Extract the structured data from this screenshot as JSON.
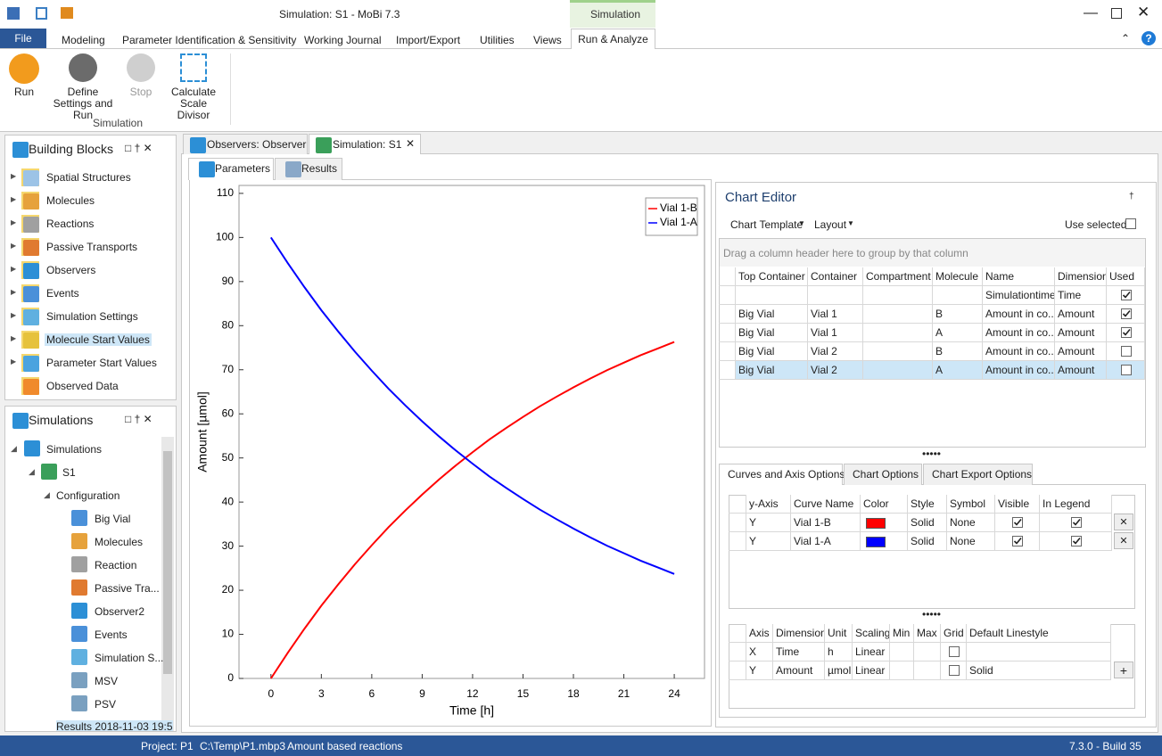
{
  "window": {
    "title": "Simulation: S1 - MoBi 7.3",
    "context_tab": "Simulation"
  },
  "ribbon": {
    "tabs": [
      "File",
      "Modeling",
      "Parameter Identification & Sensitivity",
      "Working Journal",
      "Import/Export",
      "Utilities",
      "Views",
      "Run & Analyze"
    ],
    "buttons": [
      "Run",
      "Define Settings and Run",
      "Stop",
      "Calculate Scale Divisor"
    ],
    "group": "Simulation"
  },
  "building_blocks": {
    "title": "Building Blocks",
    "items": [
      "Spatial Structures",
      "Molecules",
      "Reactions",
      "Passive Transports",
      "Observers",
      "Events",
      "Simulation Settings",
      "Molecule Start Values",
      "Parameter Start Values",
      "Observed Data"
    ]
  },
  "simulations": {
    "title": "Simulations",
    "root": "Simulations",
    "simulation": "S1",
    "folder": "Configuration",
    "items": [
      "Big Vial",
      "Molecules",
      "Reaction",
      "Passive Tra...",
      "Observer2",
      "Events",
      "Simulation S...",
      "MSV",
      "PSV"
    ],
    "results": "Results 2018-11-03 19:5"
  },
  "doc_tabs": [
    "Observers: Observer",
    "Simulation: S1"
  ],
  "sub_tabs": [
    "Parameters",
    "Results"
  ],
  "chart_data": {
    "type": "line",
    "x_label": "Time [h]",
    "y_label": "Amount [µmol]",
    "x": [
      0,
      1,
      2,
      3,
      4,
      5,
      6,
      7,
      8,
      9,
      10,
      11,
      12,
      13,
      14,
      15,
      16,
      17,
      18,
      19,
      20,
      21,
      22,
      23,
      24
    ],
    "series": [
      {
        "name": "Vial 1-B",
        "color": "#ff0000",
        "values": [
          0,
          5.8,
          11.3,
          16.5,
          21.3,
          25.9,
          30.2,
          34.3,
          38.1,
          41.7,
          45.1,
          48.3,
          51.3,
          54.2,
          56.8,
          59.3,
          61.7,
          63.9,
          66.0,
          68.0,
          69.9,
          71.6,
          73.3,
          74.8,
          76.3
        ]
      },
      {
        "name": "Vial 1-A",
        "color": "#0000ff",
        "values": [
          100,
          94.2,
          88.7,
          83.5,
          78.7,
          74.1,
          69.8,
          65.7,
          61.9,
          58.3,
          54.9,
          51.7,
          48.7,
          45.8,
          43.2,
          40.7,
          38.3,
          36.1,
          34.0,
          32.0,
          30.1,
          28.4,
          26.7,
          25.2,
          23.7
        ]
      }
    ],
    "xlim": [
      -1.9,
      25.8
    ],
    "ylim": [
      0,
      111.8
    ],
    "xticks": [
      0,
      3,
      6,
      9,
      12,
      15,
      18,
      21,
      24
    ],
    "yticks": [
      0,
      10,
      20,
      30,
      40,
      50,
      60,
      70,
      80,
      90,
      100,
      110
    ],
    "grid": false,
    "legend": "top-right"
  },
  "chart_editor": {
    "title": "Chart Editor",
    "menus": [
      "Chart Template",
      "Layout"
    ],
    "use_selected": "Use selected",
    "group_hint": "Drag a column header here to group by that column",
    "columns": [
      "Top Container",
      "Container",
      "Compartment",
      "Molecule",
      "Name",
      "Dimension",
      "Used"
    ],
    "rows": [
      [
        null,
        null,
        null,
        null,
        "Simulationtime",
        "Time",
        true
      ],
      [
        "Big Vial",
        "Vial 1",
        null,
        "B",
        "Amount in co...",
        "Amount",
        true
      ],
      [
        "Big Vial",
        "Vial 1",
        null,
        "A",
        "Amount in co...",
        "Amount",
        true
      ],
      [
        "Big Vial",
        "Vial 2",
        null,
        "B",
        "Amount in co...",
        "Amount",
        false
      ],
      [
        "Big Vial",
        "Vial 2",
        null,
        "A",
        "Amount in co...",
        "Amount",
        false
      ]
    ]
  },
  "option_tabs": [
    "Curves and Axis Options",
    "Chart Options",
    "Chart Export Options"
  ],
  "curves": {
    "columns": [
      "y-Axis",
      "Curve Name",
      "Color",
      "Style",
      "Symbol",
      "Visible",
      "In Legend"
    ],
    "rows": [
      [
        "Y",
        "Vial 1-B",
        "#ff0000",
        "Solid",
        "None",
        true,
        true
      ],
      [
        "Y",
        "Vial 1-A",
        "#0000ff",
        "Solid",
        "None",
        true,
        true
      ]
    ]
  },
  "axes": {
    "columns": [
      "Axis",
      "Dimension",
      "Unit",
      "Scaling",
      "Min",
      "Max",
      "Grid",
      "Default Linestyle"
    ],
    "rows": [
      [
        "X",
        "Time",
        "h",
        "Linear",
        null,
        null,
        false,
        null
      ],
      [
        "Y",
        "Amount",
        "µmol",
        "Linear",
        null,
        null,
        false,
        "Solid"
      ]
    ]
  },
  "status": {
    "project": "Project: P1",
    "path": "C:\\Temp\\P1.mbp3",
    "description": "Amount based reactions",
    "version": "7.3.0 - Build 35"
  }
}
